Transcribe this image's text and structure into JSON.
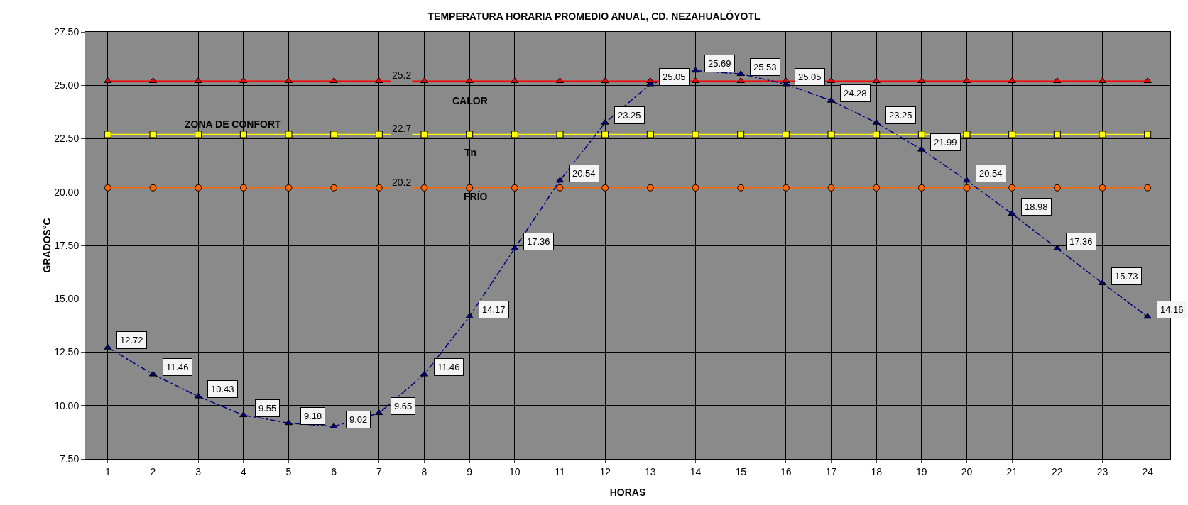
{
  "chart_data": {
    "type": "line",
    "title": "TEMPERATURA HORARIA PROMEDIO ANUAL, CD. NEZAHUALÓYOTL",
    "xlabel": "HORAS",
    "ylabel": "GRADOS°C",
    "x": [
      1,
      2,
      3,
      4,
      5,
      6,
      7,
      8,
      9,
      10,
      11,
      12,
      13,
      14,
      15,
      16,
      17,
      18,
      19,
      20,
      21,
      22,
      23,
      24
    ],
    "xlim": [
      0.5,
      24.5
    ],
    "xticks": [
      1,
      2,
      3,
      4,
      5,
      6,
      7,
      8,
      9,
      10,
      11,
      12,
      13,
      14,
      15,
      16,
      17,
      18,
      19,
      20,
      21,
      22,
      23,
      24
    ],
    "ylim": [
      7.5,
      27.5
    ],
    "yticks": [
      {
        "value": 7.5,
        "label": "7.50"
      },
      {
        "value": 10,
        "label": "10.00"
      },
      {
        "value": 12.5,
        "label": "12.50"
      },
      {
        "value": 15,
        "label": "15.00"
      },
      {
        "value": 17.5,
        "label": "17.50"
      },
      {
        "value": 20,
        "label": "20.00"
      },
      {
        "value": 22.5,
        "label": "22.50"
      },
      {
        "value": 25,
        "label": "25.00"
      },
      {
        "value": 27.5,
        "label": "27.50"
      }
    ],
    "grid": true,
    "series": [
      {
        "color": "#ff0000",
        "marker": "triangle",
        "line_style": "solid",
        "values": [
          25.2,
          25.2,
          25.2,
          25.2,
          25.2,
          25.2,
          25.2,
          25.2,
          25.2,
          25.2,
          25.2,
          25.2,
          25.2,
          25.2,
          25.2,
          25.2,
          25.2,
          25.2,
          25.2,
          25.2,
          25.2,
          25.2,
          25.2,
          25.2
        ],
        "value_labels": [
          null,
          null,
          null,
          null,
          null,
          null,
          "25.2",
          null,
          null,
          null,
          null,
          null,
          null,
          null,
          null,
          null,
          null,
          null,
          null,
          null,
          null,
          null,
          null,
          null
        ]
      },
      {
        "color": "#ffff00",
        "marker": "square",
        "line_style": "solid",
        "values": [
          22.7,
          22.7,
          22.7,
          22.7,
          22.7,
          22.7,
          22.7,
          22.7,
          22.7,
          22.7,
          22.7,
          22.7,
          22.7,
          22.7,
          22.7,
          22.7,
          22.7,
          22.7,
          22.7,
          22.7,
          22.7,
          22.7,
          22.7,
          22.7
        ],
        "value_labels": [
          null,
          null,
          null,
          null,
          null,
          null,
          "22.7",
          null,
          null,
          null,
          null,
          null,
          null,
          null,
          null,
          null,
          null,
          null,
          null,
          null,
          null,
          null,
          null,
          null
        ]
      },
      {
        "color": "#ff6600",
        "marker": "circle",
        "line_style": "solid",
        "values": [
          20.2,
          20.2,
          20.2,
          20.2,
          20.2,
          20.2,
          20.2,
          20.2,
          20.2,
          20.2,
          20.2,
          20.2,
          20.2,
          20.2,
          20.2,
          20.2,
          20.2,
          20.2,
          20.2,
          20.2,
          20.2,
          20.2,
          20.2,
          20.2
        ],
        "value_labels": [
          null,
          null,
          null,
          null,
          null,
          null,
          "20.2",
          null,
          null,
          null,
          null,
          null,
          null,
          null,
          null,
          null,
          null,
          null,
          null,
          null,
          null,
          null,
          null,
          null
        ]
      },
      {
        "color": "#000080",
        "marker": "triangle",
        "line_style": "dashed",
        "values": [
          12.72,
          11.46,
          10.43,
          9.55,
          9.18,
          9.02,
          9.65,
          11.46,
          14.17,
          17.36,
          20.54,
          23.25,
          25.05,
          25.69,
          25.53,
          25.05,
          24.28,
          23.25,
          21.99,
          20.54,
          18.98,
          17.36,
          15.73,
          14.16
        ],
        "value_labels": [
          "12.72",
          "11.46",
          "10.43",
          "9.55",
          "9.18",
          "9.02",
          "9.65",
          "11.46",
          "14.17",
          "17.36",
          "20.54",
          "23.25",
          "25.05",
          "25.69",
          "25.53",
          "25.05",
          "24.28",
          "23.25",
          "21.99",
          "20.54",
          "18.98",
          "17.36",
          "15.73",
          "14.16"
        ]
      }
    ],
    "annotations": [
      "CALOR",
      "ZONA DE CONFORT",
      "Tn",
      "FRÍO"
    ]
  }
}
